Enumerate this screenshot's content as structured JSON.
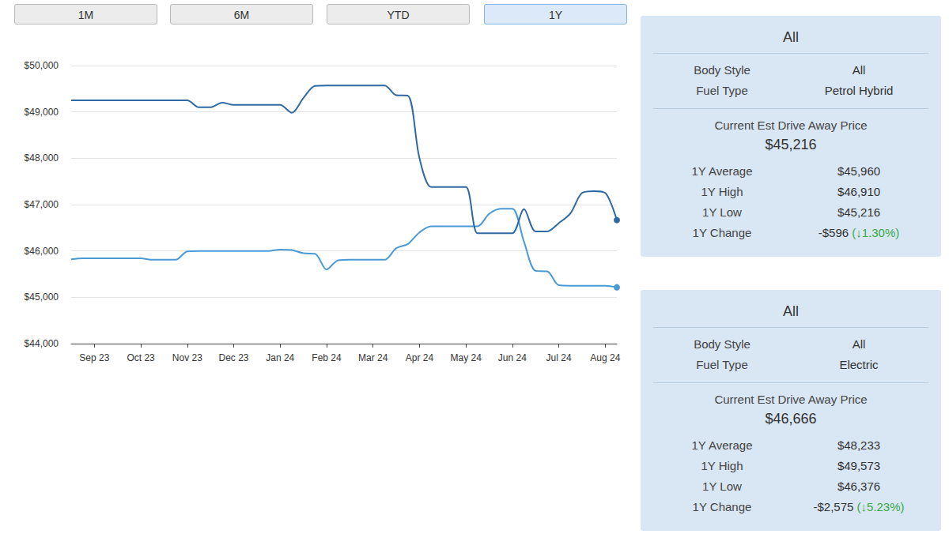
{
  "buttons": {
    "items": [
      "1M",
      "6M",
      "YTD",
      "1Y"
    ],
    "active": "1Y"
  },
  "chart_data": {
    "type": "line",
    "categories": [
      null,
      null,
      "Sep 23",
      null,
      null,
      null,
      "Oct 23",
      null,
      null,
      null,
      "Nov 23",
      null,
      null,
      null,
      "Dec 23",
      null,
      null,
      null,
      "Jan 24",
      null,
      null,
      null,
      "Feb 24",
      null,
      null,
      null,
      "Mar 24",
      null,
      null,
      null,
      "Apr 24",
      null,
      null,
      null,
      "May 24",
      null,
      null,
      null,
      "Jun 24",
      null,
      null,
      null,
      "Jul 24",
      null,
      null,
      null,
      "Aug 24",
      null
    ],
    "series": [
      {
        "color": "#4a9ad6",
        "marker": "circle",
        "values": [
          45820,
          45840,
          45840,
          45840,
          45840,
          45840,
          45840,
          45810,
          45810,
          45810,
          45990,
          46000,
          46000,
          46000,
          46000,
          46000,
          46000,
          46000,
          46030,
          46020,
          45950,
          45940,
          45600,
          45800,
          45810,
          45810,
          45810,
          45810,
          46060,
          46150,
          46400,
          46530,
          46530,
          46530,
          46530,
          46530,
          46800,
          46910,
          46910,
          46200,
          45570,
          45560,
          45260,
          45250,
          45250,
          45250,
          45250,
          45216
        ]
      },
      {
        "color": "#2f6aa3",
        "marker": "circle",
        "values": [
          49250,
          49250,
          49250,
          49250,
          49250,
          49250,
          49250,
          49250,
          49250,
          49250,
          49250,
          49100,
          49100,
          49200,
          49150,
          49150,
          49150,
          49150,
          49150,
          48980,
          49300,
          49560,
          49570,
          49570,
          49570,
          49570,
          49570,
          49570,
          49360,
          49350,
          48000,
          47380,
          47380,
          47380,
          47380,
          46380,
          46380,
          46380,
          46380,
          46900,
          46420,
          46420,
          46600,
          46810,
          47250,
          47290,
          47250,
          46666
        ]
      }
    ],
    "ylim": [
      44000,
      50000
    ],
    "yticks": [
      {
        "value": 44000,
        "label": "$44,000"
      },
      {
        "value": 45000,
        "label": "$45,000"
      },
      {
        "value": 46000,
        "label": "$46,000"
      },
      {
        "value": 47000,
        "label": "$47,000"
      },
      {
        "value": 48000,
        "label": "$48,000"
      },
      {
        "value": 49000,
        "label": "$49,000"
      },
      {
        "value": 50000,
        "label": "$50,000"
      }
    ],
    "grid": true
  },
  "panels": [
    {
      "title": "All",
      "rows": [
        {
          "label": "Body Style",
          "value": "All"
        },
        {
          "label": "Fuel Type",
          "value": "Petrol Hybrid"
        }
      ],
      "price_label": "Current Est Drive Away Price",
      "price": "$45,216",
      "stats": [
        {
          "label": "1Y Average",
          "value": "$45,960"
        },
        {
          "label": "1Y High",
          "value": "$46,910"
        },
        {
          "label": "1Y Low",
          "value": "$45,216"
        },
        {
          "label": "1Y Change",
          "value": "-$596",
          "pct": "(↓1.30%)"
        }
      ]
    },
    {
      "title": "All",
      "rows": [
        {
          "label": "Body Style",
          "value": "All"
        },
        {
          "label": "Fuel Type",
          "value": "Electric"
        }
      ],
      "price_label": "Current Est Drive Away Price",
      "price": "$46,666",
      "stats": [
        {
          "label": "1Y Average",
          "value": "$48,233"
        },
        {
          "label": "1Y High",
          "value": "$49,573"
        },
        {
          "label": "1Y Low",
          "value": "$46,376"
        },
        {
          "label": "1Y Change",
          "value": "-$2,575",
          "pct": "(↓5.23%)"
        }
      ]
    }
  ]
}
